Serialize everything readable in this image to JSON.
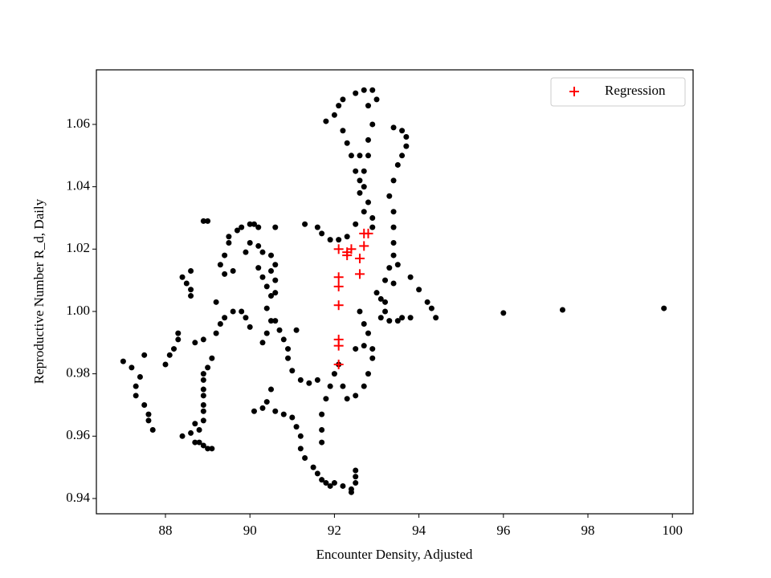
{
  "chart_data": {
    "type": "scatter",
    "xlabel": "Encounter Density, Adjusted",
    "ylabel": "Reproductive Number R_d, Daily",
    "xlim": [
      86.365,
      100.49
    ],
    "ylim": [
      0.9351,
      1.0775
    ],
    "xticks": [
      88,
      90,
      92,
      94,
      96,
      98,
      100
    ],
    "yticks": [
      0.94,
      0.96,
      0.98,
      {
        "value": 1.0,
        "label": "1.00"
      },
      1.02,
      1.04,
      1.06
    ],
    "legend": "upper right",
    "series": [
      {
        "color": "#000000",
        "marker": "circle",
        "x": [
          87.0,
          87.2,
          87.3,
          87.3,
          87.5,
          87.6,
          87.6,
          87.7,
          87.4,
          87.5,
          88.0,
          88.1,
          88.2,
          88.3,
          88.3,
          88.4,
          88.5,
          88.6,
          88.6,
          88.6,
          88.4,
          88.6,
          88.7,
          88.8,
          88.9,
          89.0,
          89.1,
          88.7,
          88.8,
          88.9,
          88.9,
          88.9,
          88.9,
          88.9,
          88.9,
          88.9,
          89.0,
          89.1,
          88.7,
          88.9,
          89.2,
          89.3,
          89.4,
          89.2,
          89.6,
          89.8,
          89.9,
          90.0,
          88.9,
          89.0,
          89.3,
          89.4,
          89.5,
          89.5,
          89.7,
          89.8,
          89.9,
          89.6,
          89.4,
          90.0,
          90.1,
          90.2,
          90.0,
          90.2,
          90.3,
          90.2,
          90.3,
          90.4,
          90.5,
          90.4,
          90.5,
          90.4,
          90.3,
          90.6,
          90.7,
          90.8,
          90.9,
          90.9,
          91.0,
          91.2,
          91.4,
          91.6,
          91.1,
          90.6,
          90.5,
          90.6,
          90.6,
          90.6,
          90.5,
          90.1,
          90.3,
          90.4,
          90.5,
          90.6,
          90.8,
          91.0,
          91.1,
          91.2,
          91.2,
          91.3,
          91.5,
          91.6,
          91.7,
          91.8,
          91.9,
          92.0,
          92.2,
          92.4,
          92.4,
          92.5,
          92.5,
          92.5,
          91.7,
          91.7,
          91.7,
          91.8,
          91.9,
          92.0,
          92.1,
          91.3,
          91.6,
          91.7,
          91.9,
          92.1,
          92.3,
          92.5,
          92.7,
          92.6,
          92.5,
          92.4,
          92.3,
          92.2,
          92.0,
          91.8,
          92.1,
          92.2,
          92.5,
          92.7,
          92.9,
          93.0,
          92.8,
          92.9,
          92.8,
          92.8,
          92.7,
          92.7,
          92.8,
          92.9,
          92.9,
          92.6,
          92.6,
          93.4,
          93.6,
          93.7,
          93.7,
          93.6,
          93.5,
          93.4,
          93.3,
          93.4,
          93.4,
          93.4,
          93.4,
          93.3,
          93.2,
          93.0,
          93.1,
          93.2,
          93.3,
          93.5,
          93.6,
          93.8,
          93.8,
          94.0,
          94.2,
          94.3,
          94.4,
          93.5,
          93.4,
          93.2,
          93.1,
          92.6,
          92.7,
          92.8,
          92.9,
          92.9,
          92.8,
          92.7,
          92.5,
          92.3,
          92.2,
          92.7,
          92.5,
          96.0,
          97.4,
          99.8
        ],
        "values": [
          0.984,
          0.982,
          0.976,
          0.973,
          0.97,
          0.967,
          0.965,
          0.962,
          0.979,
          0.986,
          0.983,
          0.986,
          0.988,
          0.991,
          0.993,
          1.011,
          1.009,
          1.007,
          1.005,
          1.013,
          0.96,
          0.961,
          0.958,
          0.958,
          0.957,
          0.956,
          0.956,
          0.964,
          0.962,
          0.965,
          0.968,
          0.97,
          0.973,
          0.975,
          0.978,
          0.98,
          0.982,
          0.985,
          0.99,
          0.991,
          0.993,
          0.996,
          0.998,
          1.003,
          1.0,
          1.0,
          0.998,
          0.995,
          1.029,
          1.029,
          1.015,
          1.018,
          1.022,
          1.024,
          1.026,
          1.027,
          1.019,
          1.013,
          1.012,
          1.028,
          1.028,
          1.027,
          1.022,
          1.021,
          1.019,
          1.014,
          1.011,
          1.008,
          1.005,
          1.001,
          0.997,
          0.993,
          0.99,
          0.997,
          0.994,
          0.991,
          0.988,
          0.985,
          0.981,
          0.978,
          0.977,
          0.978,
          0.994,
          1.027,
          1.018,
          1.015,
          1.01,
          1.006,
          1.013,
          0.968,
          0.969,
          0.971,
          0.975,
          0.968,
          0.967,
          0.966,
          0.963,
          0.96,
          0.956,
          0.953,
          0.95,
          0.948,
          0.946,
          0.945,
          0.944,
          0.945,
          0.944,
          0.943,
          0.942,
          0.945,
          0.947,
          0.949,
          0.958,
          0.962,
          0.967,
          0.972,
          0.976,
          0.98,
          0.983,
          1.028,
          1.027,
          1.025,
          1.023,
          1.023,
          1.024,
          1.028,
          1.032,
          1.038,
          1.045,
          1.05,
          1.054,
          1.058,
          1.063,
          1.061,
          1.066,
          1.068,
          1.07,
          1.071,
          1.071,
          1.068,
          1.066,
          1.06,
          1.055,
          1.05,
          1.045,
          1.04,
          1.035,
          1.03,
          1.027,
          1.05,
          1.042,
          1.059,
          1.058,
          1.056,
          1.053,
          1.05,
          1.047,
          1.042,
          1.037,
          1.032,
          1.027,
          1.022,
          1.018,
          1.014,
          1.01,
          1.006,
          1.004,
          1.003,
          0.997,
          0.997,
          0.998,
          0.998,
          1.011,
          1.007,
          1.003,
          1.001,
          0.998,
          1.015,
          1.009,
          1.0,
          0.998,
          1.0,
          0.996,
          0.993,
          0.988,
          0.985,
          0.98,
          0.976,
          0.973,
          0.972,
          0.976,
          0.989,
          0.988,
          0.9995,
          1.0005,
          1.001
        ]
      },
      {
        "name": "Regression",
        "color": "#ff0000",
        "marker": "plus",
        "x": [
          92.1,
          92.1,
          92.1,
          92.1,
          92.1,
          92.1,
          92.1,
          92.3,
          92.3,
          92.4,
          92.6,
          92.6,
          92.7,
          92.7,
          92.8
        ],
        "values": [
          1.02,
          1.011,
          1.008,
          1.002,
          0.991,
          0.989,
          0.983,
          1.018,
          1.019,
          1.02,
          1.017,
          1.012,
          1.021,
          1.025,
          1.025
        ]
      }
    ]
  }
}
